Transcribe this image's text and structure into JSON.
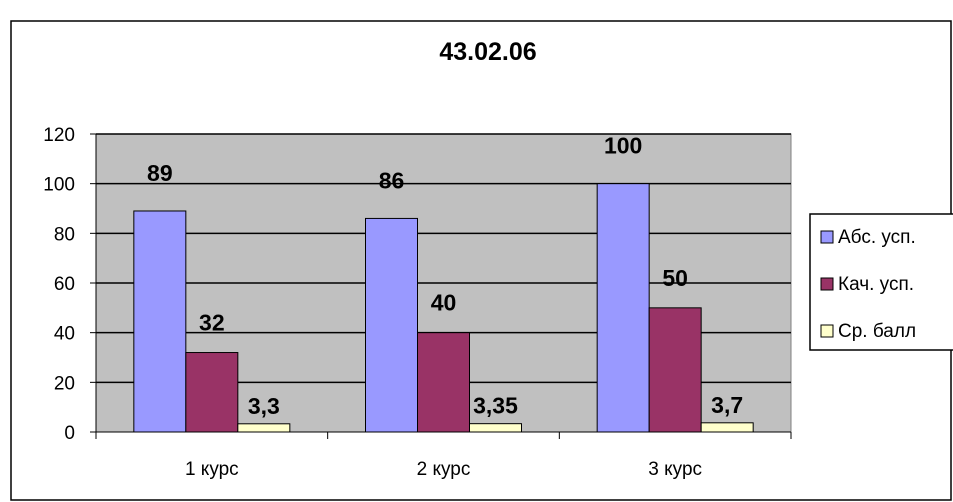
{
  "chart_data": {
    "type": "bar",
    "title": "43.02.06",
    "categories": [
      "1 курс",
      "2 курс",
      "3 курс"
    ],
    "series": [
      {
        "name": "Абс. усп.",
        "values": [
          89,
          86,
          100
        ],
        "labels": [
          "89",
          "86",
          "100"
        ],
        "color": "#9999ff"
      },
      {
        "name": "Кач. усп.",
        "values": [
          32,
          40,
          50
        ],
        "labels": [
          "32",
          "40",
          "50"
        ],
        "color": "#993366"
      },
      {
        "name": "Ср. балл",
        "values": [
          3.3,
          3.35,
          3.7
        ],
        "labels": [
          "3,3",
          "3,35",
          "3,7"
        ],
        "color": "#ffffcc"
      }
    ],
    "ylim": [
      0,
      120
    ],
    "yticks": [
      0,
      20,
      40,
      60,
      80,
      100,
      120
    ],
    "grid": true,
    "plot_background": "#c0c0c0",
    "legend_position": "right"
  }
}
